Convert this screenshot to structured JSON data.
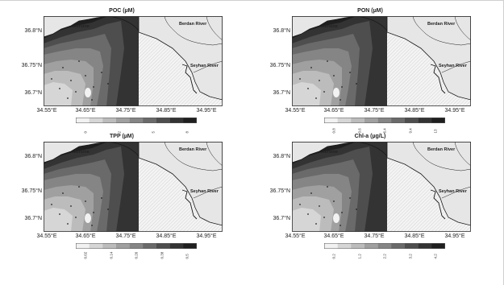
{
  "panels": [
    {
      "id": "poc",
      "title": "POC (µM)",
      "lat_labels": [
        "36.8°N",
        "36.75°N",
        "36.7°N"
      ],
      "lon_labels": [
        "34.55°E",
        "34.65°E",
        "34.75°E",
        "34.85°E",
        "34.95°E"
      ],
      "places": {
        "city": "Mersine",
        "river1": "Berdan River",
        "river2": "Seyhan River"
      },
      "colorbar": [
        "0",
        "2",
        "5",
        "8"
      ]
    },
    {
      "id": "pon",
      "title": "PON (µM)",
      "lat_labels": [
        "36.8°N",
        "36.75°N",
        "36.7°N"
      ],
      "lon_labels": [
        "34.55°E",
        "34.65°E",
        "34.75°E",
        "34.85°E",
        "34.95°E"
      ],
      "places": {
        "city": "Mersine",
        "river1": "Berdan River",
        "river2": "Seyhan River"
      },
      "colorbar": [
        "0.8",
        "3.6",
        "6.4",
        "9.4",
        "13"
      ]
    },
    {
      "id": "tpp",
      "title": "TPP (µM)",
      "lat_labels": [
        "36.8°N",
        "36.75°N",
        "36.7°N"
      ],
      "lon_labels": [
        "34.55°E",
        "34.65°E",
        "34.75°E",
        "34.85°E",
        "34.95°E"
      ],
      "places": {
        "city": "Mersine",
        "river1": "Berdan River",
        "river2": "Seyhan River"
      },
      "colorbar": [
        "0.02",
        "0.14",
        "0.26",
        "0.38",
        "0.5"
      ]
    },
    {
      "id": "chla",
      "title": "Chl-a (µg/L)",
      "lat_labels": [
        "36.8°N",
        "36.75°N",
        "36.7°N"
      ],
      "lon_labels": [
        "34.55°E",
        "34.65°E",
        "34.75°E",
        "34.85°E",
        "34.95°E"
      ],
      "places": {
        "city": "Mersine",
        "river1": "Berdan River",
        "river2": "Seyhan River"
      },
      "colorbar": [
        "0.2",
        "1.2",
        "2.2",
        "3.2",
        "4.2"
      ]
    }
  ],
  "colors": {
    "land": "#e6e6e6",
    "outline": "#1a1a1a",
    "hatch": "#bdbdbd",
    "shades": [
      "#f2f2f2",
      "#d6d6d6",
      "#bcbcbc",
      "#a0a0a0",
      "#858585",
      "#6a6a6a",
      "#4e4e4e",
      "#333333",
      "#1f1f1f"
    ]
  }
}
